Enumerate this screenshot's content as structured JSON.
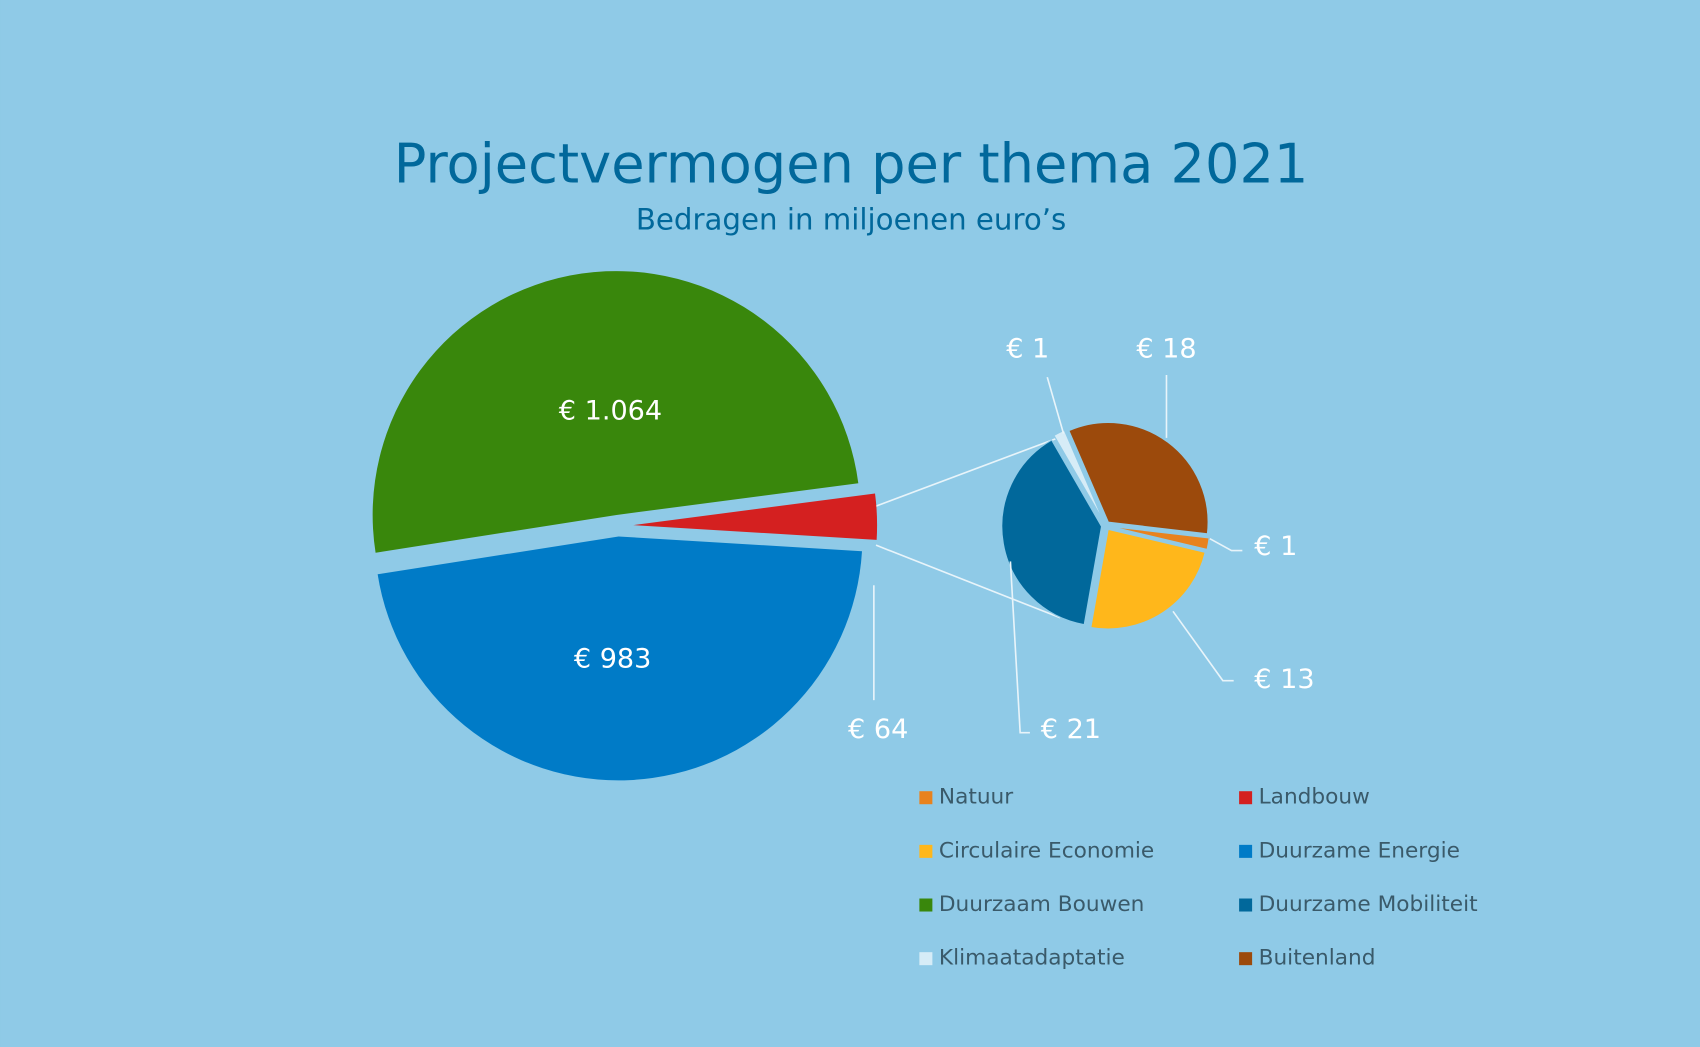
{
  "chart_data": {
    "type": "pie-of-pie",
    "title": "Projectvermogen per thema 2021",
    "subtitle": "Bedragen in miljoenen euro’s",
    "categories": [
      "Natuur",
      "Landbouw",
      "Circulaire Economie",
      "Duurzame Energie",
      "Duurzaam Bouwen",
      "Duurzame Mobiliteit",
      "Klimaatadaptatie",
      "Buitenland"
    ],
    "values": [
      1,
      64,
      13,
      983,
      1064,
      21,
      1,
      18
    ],
    "value_labels": [
      "€ 1",
      "€ 64",
      "€ 13",
      "€ 983",
      "€ 1.064",
      "€ 21",
      "€ 1",
      "€ 18"
    ],
    "colors": [
      "#e8821e",
      "#d42020",
      "#ffb71b",
      "#007bc7",
      "#39870c",
      "#01689b",
      "#d6ecf7",
      "#9c4a0c"
    ],
    "pie": [
      "second",
      "main",
      "second",
      "main",
      "main",
      "second",
      "second",
      "second"
    ]
  }
}
